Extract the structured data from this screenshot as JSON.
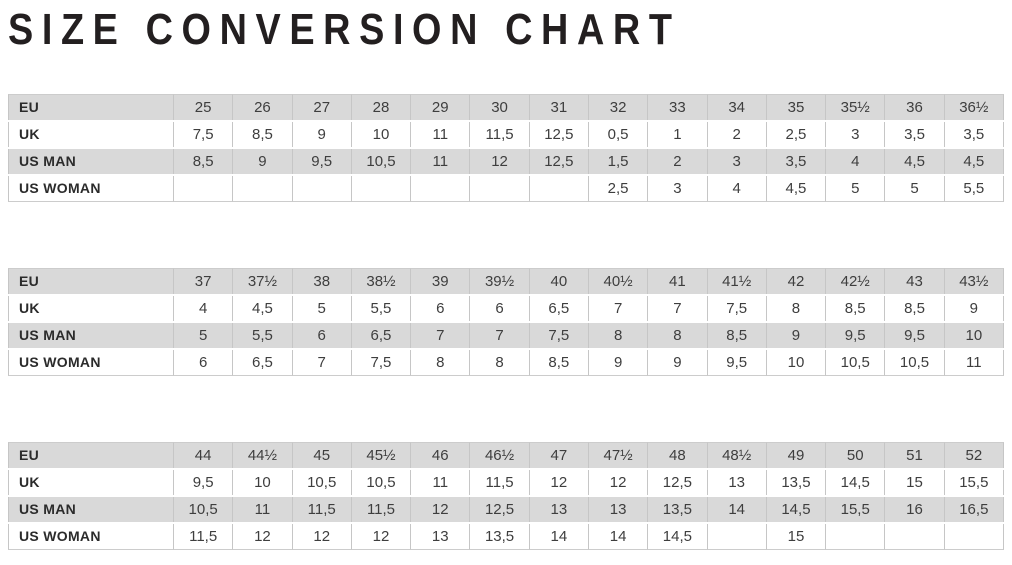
{
  "title": "SIZE CONVERSION CHART",
  "chart_data": {
    "type": "table",
    "title": "SIZE CONVERSION CHART",
    "tables": [
      {
        "row_labels": [
          "EU",
          "UK",
          "US MAN",
          "US WOMAN"
        ],
        "rows": [
          [
            "25",
            "26",
            "27",
            "28",
            "29",
            "30",
            "31",
            "32",
            "33",
            "34",
            "35",
            "35½",
            "36",
            "36½"
          ],
          [
            "7,5",
            "8,5",
            "9",
            "10",
            "11",
            "11,5",
            "12,5",
            "0,5",
            "1",
            "2",
            "2,5",
            "3",
            "3,5",
            "3,5"
          ],
          [
            "8,5",
            "9",
            "9,5",
            "10,5",
            "11",
            "12",
            "12,5",
            "1,5",
            "2",
            "3",
            "3,5",
            "4",
            "4,5",
            "4,5"
          ],
          [
            "",
            "",
            "",
            "",
            "",
            "",
            "",
            "2,5",
            "3",
            "4",
            "4,5",
            "5",
            "5",
            "5,5"
          ]
        ]
      },
      {
        "row_labels": [
          "EU",
          "UK",
          "US MAN",
          "US WOMAN"
        ],
        "rows": [
          [
            "37",
            "37½",
            "38",
            "38½",
            "39",
            "39½",
            "40",
            "40½",
            "41",
            "41½",
            "42",
            "42½",
            "43",
            "43½"
          ],
          [
            "4",
            "4,5",
            "5",
            "5,5",
            "6",
            "6",
            "6,5",
            "7",
            "7",
            "7,5",
            "8",
            "8,5",
            "8,5",
            "9"
          ],
          [
            "5",
            "5,5",
            "6",
            "6,5",
            "7",
            "7",
            "7,5",
            "8",
            "8",
            "8,5",
            "9",
            "9,5",
            "9,5",
            "10"
          ],
          [
            "6",
            "6,5",
            "7",
            "7,5",
            "8",
            "8",
            "8,5",
            "9",
            "9",
            "9,5",
            "10",
            "10,5",
            "10,5",
            "11"
          ]
        ]
      },
      {
        "row_labels": [
          "EU",
          "UK",
          "US MAN",
          "US WOMAN"
        ],
        "rows": [
          [
            "44",
            "44½",
            "45",
            "45½",
            "46",
            "46½",
            "47",
            "47½",
            "48",
            "48½",
            "49",
            "50",
            "51",
            "52"
          ],
          [
            "9,5",
            "10",
            "10,5",
            "10,5",
            "11",
            "11,5",
            "12",
            "12",
            "12,5",
            "13",
            "13,5",
            "14,5",
            "15",
            "15,5"
          ],
          [
            "10,5",
            "11",
            "11,5",
            "11,5",
            "12",
            "12,5",
            "13",
            "13",
            "13,5",
            "14",
            "14,5",
            "15,5",
            "16",
            "16,5"
          ],
          [
            "11,5",
            "12",
            "12",
            "12",
            "13",
            "13,5",
            "14",
            "14",
            "14,5",
            "",
            "15",
            "",
            "",
            ""
          ]
        ]
      }
    ],
    "layout": {
      "shaded_row_indexes": [
        0,
        2
      ],
      "colors": {
        "row_shade": "#d9d9d9",
        "grid_line": "#c6c6c6",
        "cell_text": "#3e3e3e",
        "title_text": "#231f20"
      }
    }
  }
}
